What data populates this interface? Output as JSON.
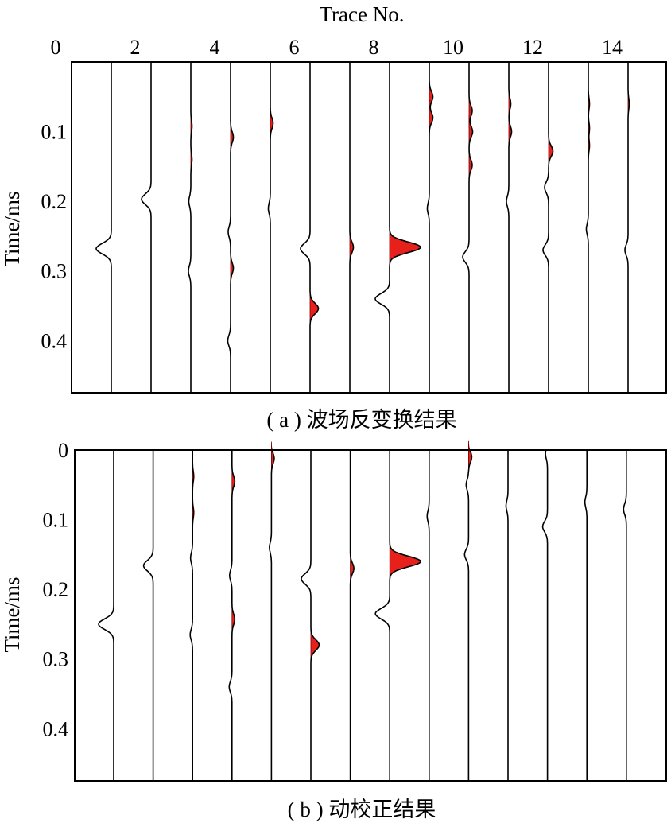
{
  "chart_data": [
    {
      "type": "seismic-wiggle",
      "panel": "a",
      "caption": "( a ) 波场反变换结果",
      "xlabel": "Trace No.",
      "ylabel": "Time/ms",
      "x_ticks": [
        "0",
        "2",
        "4",
        "6",
        "8",
        "10",
        "12",
        "14"
      ],
      "y_ticks": [
        "0.1",
        "0.2",
        "0.3",
        "0.4"
      ],
      "xlim": [
        0,
        15
      ],
      "ylim": [
        0,
        0.475
      ],
      "y_inverted": true,
      "traces": [
        {
          "trace": 1,
          "events": [
            {
              "t": 0.268,
              "amp": -0.38
            }
          ]
        },
        {
          "trace": 2,
          "events": [
            {
              "t": 0.197,
              "amp": -0.24
            }
          ]
        },
        {
          "trace": 3,
          "events": [
            {
              "t": 0.092,
              "amp": 0.03
            },
            {
              "t": 0.14,
              "amp": 0.03
            },
            {
              "t": 0.2,
              "amp": -0.05
            },
            {
              "t": 0.3,
              "amp": -0.06
            }
          ]
        },
        {
          "trace": 4,
          "events": [
            {
              "t": 0.108,
              "amp": 0.07
            },
            {
              "t": 0.244,
              "amp": -0.06
            },
            {
              "t": 0.296,
              "amp": 0.07
            },
            {
              "t": 0.4,
              "amp": -0.07
            }
          ]
        },
        {
          "trace": 5,
          "events": [
            {
              "t": 0.088,
              "amp": 0.07
            },
            {
              "t": 0.21,
              "amp": -0.05
            }
          ]
        },
        {
          "trace": 6,
          "events": [
            {
              "t": 0.268,
              "amp": -0.24
            },
            {
              "t": 0.354,
              "amp": 0.21
            }
          ]
        },
        {
          "trace": 7,
          "events": [
            {
              "t": 0.266,
              "amp": 0.09
            }
          ]
        },
        {
          "trace": 8,
          "events": [
            {
              "t": 0.266,
              "amp": 0.78
            },
            {
              "t": 0.34,
              "amp": -0.36
            }
          ]
        },
        {
          "trace": 9,
          "events": [
            {
              "t": 0.05,
              "amp": 0.09
            },
            {
              "t": 0.08,
              "amp": 0.09
            },
            {
              "t": 0.21,
              "amp": -0.05
            }
          ]
        },
        {
          "trace": 10,
          "events": [
            {
              "t": 0.07,
              "amp": 0.08
            },
            {
              "t": 0.1,
              "amp": 0.09
            },
            {
              "t": 0.148,
              "amp": 0.08
            },
            {
              "t": 0.28,
              "amp": -0.16
            }
          ]
        },
        {
          "trace": 11,
          "events": [
            {
              "t": 0.06,
              "amp": 0.05
            },
            {
              "t": 0.1,
              "amp": 0.07
            },
            {
              "t": 0.2,
              "amp": -0.06
            }
          ]
        },
        {
          "trace": 12,
          "events": [
            {
              "t": 0.128,
              "amp": 0.11
            },
            {
              "t": 0.18,
              "amp": -0.1
            },
            {
              "t": 0.27,
              "amp": -0.14
            }
          ]
        },
        {
          "trace": 13,
          "events": [
            {
              "t": 0.06,
              "amp": 0.03
            },
            {
              "t": 0.095,
              "amp": 0.03
            },
            {
              "t": 0.12,
              "amp": 0.03
            },
            {
              "t": 0.24,
              "amp": -0.05
            }
          ]
        },
        {
          "trace": 14,
          "events": [
            {
              "t": 0.06,
              "amp": 0.03
            },
            {
              "t": 0.27,
              "amp": -0.08
            }
          ]
        }
      ]
    },
    {
      "type": "seismic-wiggle",
      "panel": "b",
      "caption": "( b ) 动校正结果",
      "xlabel": "",
      "ylabel": "Time/ms",
      "x_ticks": [],
      "y_ticks": [
        "0",
        "0.1",
        "0.2",
        "0.3",
        "0.4"
      ],
      "xlim": [
        0,
        15
      ],
      "ylim": [
        0,
        0.475
      ],
      "y_inverted": true,
      "traces": [
        {
          "trace": 1,
          "events": [
            {
              "t": 0.25,
              "amp": -0.38
            }
          ]
        },
        {
          "trace": 2,
          "events": [
            {
              "t": 0.166,
              "amp": -0.24
            }
          ]
        },
        {
          "trace": 3,
          "events": [
            {
              "t": 0.038,
              "amp": 0.03
            },
            {
              "t": 0.09,
              "amp": 0.03
            },
            {
              "t": 0.155,
              "amp": -0.05
            },
            {
              "t": 0.265,
              "amp": -0.06
            }
          ]
        },
        {
          "trace": 4,
          "events": [
            {
              "t": 0.045,
              "amp": 0.07
            },
            {
              "t": 0.18,
              "amp": -0.06
            },
            {
              "t": 0.243,
              "amp": 0.07
            },
            {
              "t": 0.34,
              "amp": -0.07
            }
          ]
        },
        {
          "trace": 5,
          "events": [
            {
              "t": 0.012,
              "amp": 0.07
            },
            {
              "t": 0.14,
              "amp": -0.05
            }
          ]
        },
        {
          "trace": 6,
          "events": [
            {
              "t": 0.185,
              "amp": -0.24
            },
            {
              "t": 0.28,
              "amp": 0.21
            }
          ]
        },
        {
          "trace": 7,
          "events": [
            {
              "t": 0.17,
              "amp": 0.09
            }
          ]
        },
        {
          "trace": 8,
          "events": [
            {
              "t": 0.16,
              "amp": 0.78
            },
            {
              "t": 0.235,
              "amp": -0.36
            }
          ]
        },
        {
          "trace": 9,
          "events": [
            {
              "t": 0.095,
              "amp": -0.05
            }
          ]
        },
        {
          "trace": 10,
          "events": [
            {
              "t": 0.01,
              "amp": 0.08
            },
            {
              "t": 0.05,
              "amp": -0.06
            },
            {
              "t": 0.15,
              "amp": -0.1
            }
          ]
        },
        {
          "trace": 11,
          "events": [
            {
              "t": 0.08,
              "amp": -0.05
            }
          ]
        },
        {
          "trace": 12,
          "events": [
            {
              "t": 0.005,
              "amp": -0.05
            },
            {
              "t": 0.11,
              "amp": -0.12
            }
          ]
        },
        {
          "trace": 13,
          "events": [
            {
              "t": 0.075,
              "amp": -0.05
            }
          ]
        },
        {
          "trace": 14,
          "events": [
            {
              "t": 0.085,
              "amp": -0.07
            }
          ]
        }
      ]
    }
  ]
}
